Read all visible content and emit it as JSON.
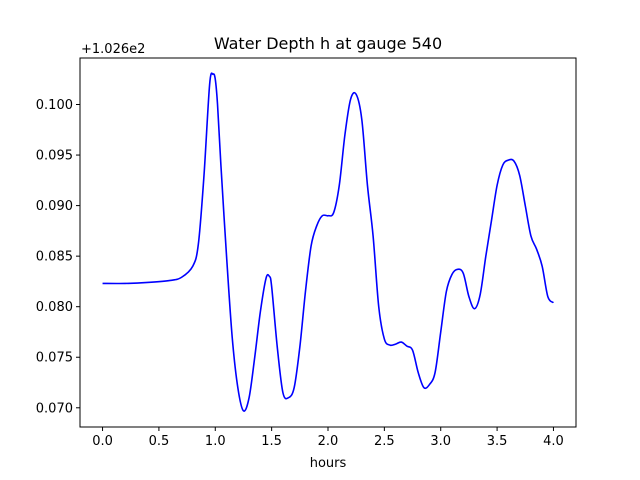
{
  "chart_data": {
    "type": "line",
    "title": "Water Depth h at gauge 540",
    "xlabel": "hours",
    "ylabel": "",
    "y_offset_label": "+1.026e2",
    "xlim": [
      -0.2,
      4.2
    ],
    "ylim": [
      0.0681,
      0.1046
    ],
    "xticks": [
      0.0,
      0.5,
      1.0,
      1.5,
      2.0,
      2.5,
      3.0,
      3.5,
      4.0
    ],
    "xtick_labels": [
      "0.0",
      "0.5",
      "1.0",
      "1.5",
      "2.0",
      "2.5",
      "3.0",
      "3.5",
      "4.0"
    ],
    "yticks": [
      0.07,
      0.075,
      0.08,
      0.085,
      0.09,
      0.095,
      0.1
    ],
    "ytick_labels": [
      "0.070",
      "0.075",
      "0.080",
      "0.085",
      "0.090",
      "0.095",
      "0.100"
    ],
    "grid": false,
    "series": [
      {
        "color": "#0000ff",
        "x": [
          0.0,
          0.2,
          0.4,
          0.6,
          0.7,
          0.8,
          0.85,
          0.9,
          0.95,
          0.98,
          1.0,
          1.02,
          1.05,
          1.1,
          1.15,
          1.2,
          1.25,
          1.3,
          1.35,
          1.4,
          1.45,
          1.48,
          1.5,
          1.55,
          1.6,
          1.65,
          1.7,
          1.75,
          1.8,
          1.85,
          1.9,
          1.95,
          2.0,
          2.05,
          2.1,
          2.15,
          2.2,
          2.25,
          2.3,
          2.35,
          2.4,
          2.45,
          2.5,
          2.55,
          2.6,
          2.65,
          2.7,
          2.75,
          2.8,
          2.85,
          2.9,
          2.95,
          3.0,
          3.05,
          3.1,
          3.15,
          3.2,
          3.25,
          3.3,
          3.35,
          3.4,
          3.45,
          3.5,
          3.55,
          3.6,
          3.65,
          3.7,
          3.75,
          3.8,
          3.85,
          3.9,
          3.95,
          4.0
        ],
        "y": [
          0.0823,
          0.0823,
          0.0824,
          0.0826,
          0.0829,
          0.084,
          0.0862,
          0.093,
          0.102,
          0.103,
          0.1025,
          0.1,
          0.094,
          0.085,
          0.077,
          0.072,
          0.0697,
          0.071,
          0.075,
          0.0795,
          0.0828,
          0.083,
          0.082,
          0.076,
          0.0715,
          0.071,
          0.072,
          0.076,
          0.0815,
          0.086,
          0.088,
          0.089,
          0.089,
          0.0893,
          0.092,
          0.097,
          0.1005,
          0.101,
          0.0985,
          0.092,
          0.087,
          0.08,
          0.0768,
          0.0762,
          0.0763,
          0.0765,
          0.0761,
          0.0757,
          0.0735,
          0.072,
          0.0723,
          0.0735,
          0.0775,
          0.0815,
          0.0832,
          0.0837,
          0.0833,
          0.081,
          0.0798,
          0.0812,
          0.085,
          0.0885,
          0.092,
          0.094,
          0.0945,
          0.0944,
          0.093,
          0.09,
          0.087,
          0.0857,
          0.084,
          0.081,
          0.0804
        ]
      }
    ]
  }
}
